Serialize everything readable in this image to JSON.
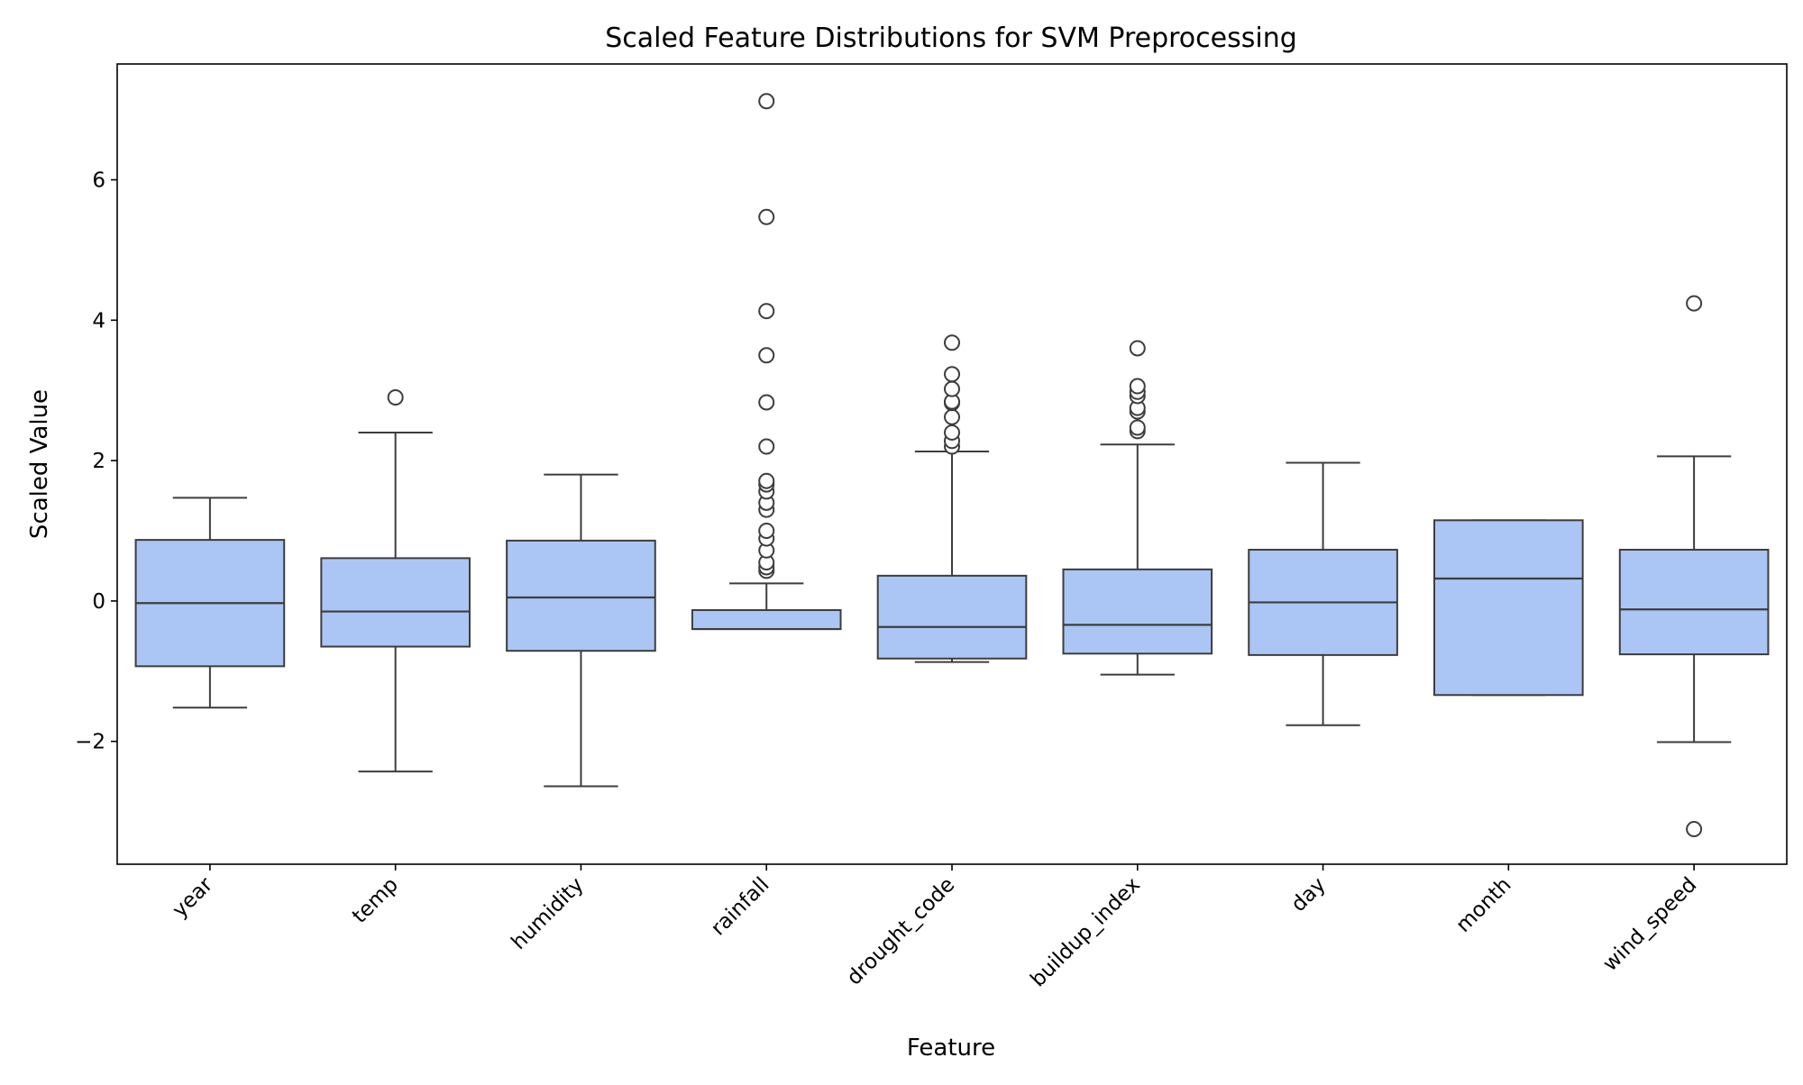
{
  "chart_data": {
    "type": "box",
    "title": "Scaled Feature Distributions for SVM Preprocessing",
    "xlabel": "Feature",
    "ylabel": "Scaled Value",
    "ylim": [
      -3.75,
      7.65
    ],
    "yticks": [
      -2,
      0,
      2,
      4,
      6
    ],
    "ytick_labels": [
      "−2",
      "0",
      "2",
      "4",
      "6"
    ],
    "grid": false,
    "legend": "none",
    "categories": [
      "year",
      "temp",
      "humidity",
      "rainfall",
      "drought_code",
      "buildup_index",
      "day",
      "month",
      "wind_speed"
    ],
    "boxes": [
      {
        "category": "year",
        "whisker_low": -1.52,
        "q1": -0.93,
        "median": -0.03,
        "q3": 0.87,
        "whisker_high": 1.47,
        "outliers": []
      },
      {
        "category": "temp",
        "whisker_low": -2.43,
        "q1": -0.65,
        "median": -0.15,
        "q3": 0.61,
        "whisker_high": 2.4,
        "outliers": [
          2.9
        ]
      },
      {
        "category": "humidity",
        "whisker_low": -2.64,
        "q1": -0.71,
        "median": 0.05,
        "q3": 0.86,
        "whisker_high": 1.8,
        "outliers": []
      },
      {
        "category": "rainfall",
        "whisker_low": -0.4,
        "q1": -0.4,
        "median": -0.4,
        "q3": -0.13,
        "whisker_high": 0.25,
        "outliers": [
          0.43,
          0.48,
          0.55,
          0.72,
          0.89,
          1.0,
          1.3,
          1.4,
          1.56,
          1.66,
          1.71,
          2.2,
          2.83,
          3.5,
          4.13,
          5.47,
          7.12
        ]
      },
      {
        "category": "drought_code",
        "whisker_low": -0.87,
        "q1": -0.82,
        "median": -0.37,
        "q3": 0.36,
        "whisker_high": 2.13,
        "outliers": [
          2.2,
          2.28,
          2.4,
          2.62,
          2.82,
          2.84,
          3.02,
          3.23,
          3.68
        ]
      },
      {
        "category": "buildup_index",
        "whisker_low": -1.05,
        "q1": -0.75,
        "median": -0.34,
        "q3": 0.45,
        "whisker_high": 2.23,
        "outliers": [
          2.42,
          2.47,
          2.7,
          2.75,
          2.92,
          2.98,
          3.06,
          3.6
        ]
      },
      {
        "category": "day",
        "whisker_low": -1.77,
        "q1": -0.77,
        "median": -0.02,
        "q3": 0.73,
        "whisker_high": 1.97,
        "outliers": []
      },
      {
        "category": "month",
        "whisker_low": -1.34,
        "q1": -1.34,
        "median": 0.32,
        "q3": 1.15,
        "whisker_high": 1.15,
        "outliers": []
      },
      {
        "category": "wind_speed",
        "whisker_low": -2.01,
        "q1": -0.76,
        "median": -0.12,
        "q3": 0.73,
        "whisker_high": 2.06,
        "outliers": [
          -3.25,
          4.24
        ]
      }
    ],
    "colors": {
      "box_fill": "#abc6f4",
      "line": "#3d3d3d",
      "axis": "#000000",
      "outlier_fill": "#ffffff"
    }
  }
}
